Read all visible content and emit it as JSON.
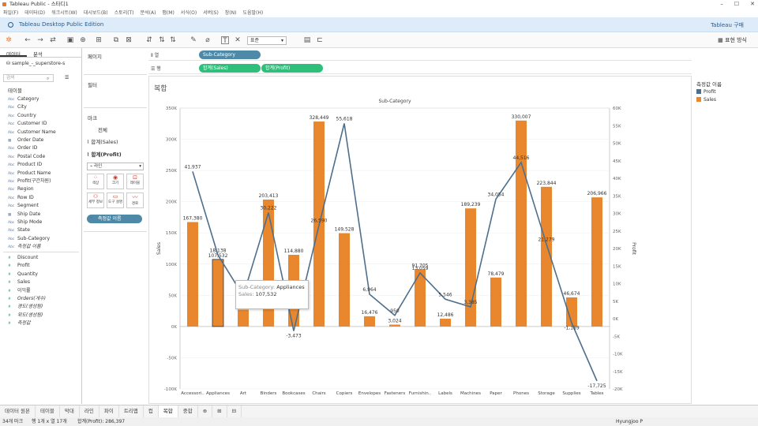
{
  "window": {
    "title": "Tableau Public - 스타디1"
  },
  "menu": [
    "파일(F)",
    "데이터(D)",
    "워크시트(W)",
    "대시보드(B)",
    "스토리(T)",
    "분석(A)",
    "맵(M)",
    "서식(O)",
    "서버(S)",
    "창(N)",
    "도움말(H)"
  ],
  "banner": {
    "text": "Tableau Desktop Public Edition",
    "buy": "Tableau 구매"
  },
  "toolbar": {
    "fit": "표준",
    "show_me": "표현 방식"
  },
  "left": {
    "tab_data": "데이터",
    "tab_analysis": "분석",
    "datasource": "sample_-_superstore-s",
    "search_placeholder": "검색",
    "tables_label": "테이블",
    "dims": [
      {
        "t": "Abc",
        "n": "Category"
      },
      {
        "t": "Abc",
        "n": "City"
      },
      {
        "t": "Abc",
        "n": "Country"
      },
      {
        "t": "Abc",
        "n": "Customer ID"
      },
      {
        "t": "Abc",
        "n": "Customer Name"
      },
      {
        "t": "▦",
        "n": "Order Date"
      },
      {
        "t": "Abc",
        "n": "Order ID"
      },
      {
        "t": "Abc",
        "n": "Postal Code"
      },
      {
        "t": "Abc",
        "n": "Product ID"
      },
      {
        "t": "Abc",
        "n": "Product Name"
      },
      {
        "t": "Abc",
        "n": "Profit(구간차원)"
      },
      {
        "t": "Abc",
        "n": "Region"
      },
      {
        "t": "Abc",
        "n": "Row ID"
      },
      {
        "t": "Abc",
        "n": "Segment"
      },
      {
        "t": "▦",
        "n": "Ship Date"
      },
      {
        "t": "Abc",
        "n": "Ship Mode"
      },
      {
        "t": "Abc",
        "n": "State"
      },
      {
        "t": "Abc",
        "n": "Sub-Category"
      },
      {
        "t": "Abc",
        "n": "측정값 이름"
      }
    ],
    "meas": [
      {
        "n": "Discount"
      },
      {
        "n": "Profit"
      },
      {
        "n": "Quantity"
      },
      {
        "n": "Sales"
      },
      {
        "n": "이익률"
      },
      {
        "n": "Orders(개수)"
      },
      {
        "n": "경도(생성됨)"
      },
      {
        "n": "위도(생성됨)"
      },
      {
        "n": "측정값"
      }
    ]
  },
  "panes": {
    "pages": "페이지",
    "filters": "필터",
    "marks": "마크",
    "all": "전체",
    "sales_card": "합계(Sales)",
    "profit_card": "합계(Profit)",
    "mark_type": "라인",
    "mark_buttons": [
      "색상",
      "크기",
      "레이블",
      "세부 정보",
      "도구 설명",
      "경로"
    ],
    "measure_names_pill": "측정값 이름"
  },
  "shelves": {
    "columns_label": "열",
    "rows_label": "행",
    "col_pill": "Sub-Category",
    "row_pill1": "합계(Sales)",
    "row_pill2": "합계(Profit)"
  },
  "sheet_title": "복합",
  "legend": {
    "title": "측정값 이름",
    "items": [
      {
        "name": "Profit",
        "color": "#4e6f8c"
      },
      {
        "name": "Sales",
        "color": "#e8872e"
      }
    ]
  },
  "tooltip": {
    "k1": "Sub-Category:",
    "v1": "Appliances",
    "k2": "Sales:",
    "v2": "107,532"
  },
  "chart_data": {
    "type": "bar",
    "header": "Sub-Category",
    "ylabel_left": "Sales",
    "ylabel_right": "Profit",
    "categories": [
      "Accessori..",
      "Appliances",
      "Art",
      "Binders",
      "Bookcases",
      "Chairs",
      "Copiers",
      "Envelopes",
      "Fasteners",
      "Furnishin..",
      "Labels",
      "Machines",
      "Paper",
      "Phones",
      "Storage",
      "Supplies",
      "Tables"
    ],
    "sales": [
      167380,
      107532,
      27119,
      203413,
      114880,
      328449,
      149528,
      16476,
      3024,
      91705,
      12486,
      189239,
      78479,
      330007,
      223844,
      46674,
      206966
    ],
    "profit": [
      41937,
      18138,
      6528,
      30222,
      -3473,
      26590,
      55618,
      6964,
      950,
      13059,
      5546,
      3385,
      34054,
      44516,
      21279,
      -1189,
      -17725
    ],
    "sales_labels": [
      "167,380",
      "107,532",
      "",
      "203,413",
      "114,880",
      "328,449",
      "149,528",
      "16,476",
      "3,024",
      "91,705",
      "12,486",
      "189,239",
      "78,479",
      "330,007",
      "223,844",
      "46,674",
      "206,966"
    ],
    "profit_labels": [
      "41,937",
      "18,138",
      "",
      "30,222",
      "-3,473",
      "26,590",
      "55,618",
      "6,964",
      "950",
      "13,059",
      "5,546",
      "3,385",
      "34,054",
      "44,516",
      "21,279",
      "-1,189",
      "-17,725"
    ],
    "left_ticks": [
      "350K",
      "300K",
      "250K",
      "200K",
      "150K",
      "100K",
      "50K",
      "0K",
      "-50K",
      "-100K"
    ],
    "right_ticks": [
      "60K",
      "55K",
      "50K",
      "45K",
      "40K",
      "35K",
      "30K",
      "25K",
      "20K",
      "15K",
      "10K",
      "5K",
      "0K",
      "-5K",
      "-10K",
      "-15K",
      "-20K"
    ],
    "ylim_left": [
      -100000,
      350000
    ],
    "ylim_right": [
      -20000,
      60000
    ]
  },
  "sheet_tabs": [
    "데이터 원본",
    "테이블",
    "막대",
    "라인",
    "파이",
    "트리맵",
    "컵",
    "복합",
    "중합",
    "⊕",
    "⊞",
    "⊟"
  ],
  "status": {
    "marks": "34개 마크",
    "rows": "행 1개 x 열 17개",
    "sum": "합계(Profit): 286,397",
    "user": "Hyungjoo P"
  }
}
